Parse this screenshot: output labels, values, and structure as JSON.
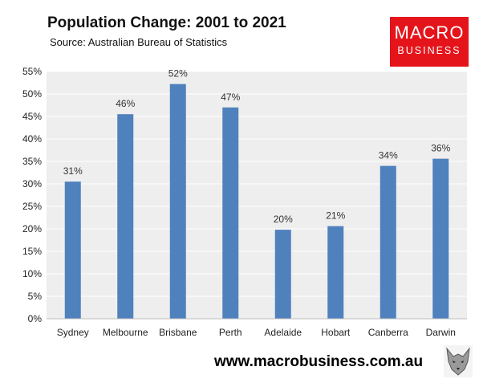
{
  "header": {
    "title": "Population Change: 2001 to 2021",
    "subtitle": "Source: Australian Bureau of Statistics"
  },
  "logo": {
    "line1": "MACRO",
    "line2": "BUSINESS",
    "color": "#e5141b"
  },
  "footer": {
    "url": "www.macrobusiness.com.au",
    "icon": "wolf-icon"
  },
  "colors": {
    "bar": "#4f81bd",
    "plot_background": "#eeeeee",
    "gridline": "#ffffff"
  },
  "chart_data": {
    "type": "bar",
    "title": "Population Change: 2001 to 2021",
    "categories": [
      "Sydney",
      "Melbourne",
      "Brisbane",
      "Perth",
      "Adelaide",
      "Hobart",
      "Canberra",
      "Darwin"
    ],
    "values": [
      0.305,
      0.455,
      0.522,
      0.47,
      0.198,
      0.206,
      0.34,
      0.356
    ],
    "data_labels": [
      "31%",
      "46%",
      "52%",
      "47%",
      "20%",
      "21%",
      "34%",
      "36%"
    ],
    "ylim": [
      0,
      0.55
    ],
    "yticks": [
      "0%",
      "5%",
      "10%",
      "15%",
      "20%",
      "25%",
      "30%",
      "35%",
      "40%",
      "45%",
      "50%",
      "55%"
    ],
    "xlabel": "",
    "ylabel": "",
    "grid": true,
    "legend": "none"
  }
}
